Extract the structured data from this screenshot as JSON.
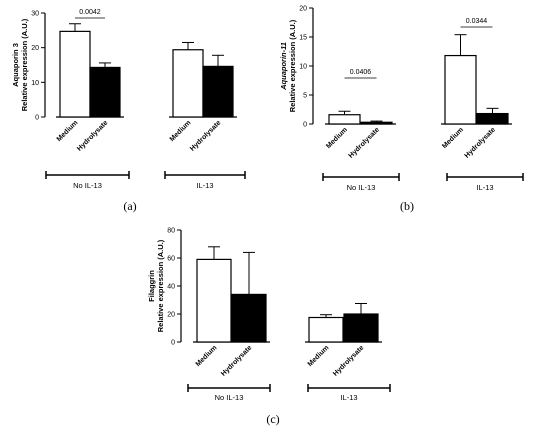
{
  "chart_data": [
    {
      "type": "bar",
      "panel_label": "(a)",
      "ylabel_line1": "Aquaporin 3",
      "ylabel_line2": "Relative expression (A.U.)",
      "ylabel_italic": false,
      "ylim": [
        0,
        30
      ],
      "yticks": [
        "0",
        "10",
        "20",
        "30"
      ],
      "groups": [
        {
          "name": "No IL-13",
          "categories": [
            "Medium",
            "Hydrolysate"
          ],
          "values": [
            24.7,
            14.3
          ],
          "errors": [
            2.2,
            1.3
          ]
        },
        {
          "name": "IL-13",
          "categories": [
            "Medium",
            "Hydrolysate"
          ],
          "values": [
            19.4,
            14.6
          ],
          "errors": [
            2.1,
            3.2
          ]
        }
      ],
      "fills": [
        "#ffffff",
        "#000000"
      ],
      "annotations": [
        {
          "group": 0,
          "text": "0.0042"
        }
      ]
    },
    {
      "type": "bar",
      "panel_label": "(b)",
      "ylabel_line1": "Aquaporin-11",
      "ylabel_line2": "Relative expression (A.U.)",
      "ylabel_italic": true,
      "ylim": [
        0,
        20
      ],
      "yticks": [
        "0",
        "5",
        "10",
        "15",
        "20"
      ],
      "groups": [
        {
          "name": "No IL-13",
          "categories": [
            "Medium",
            "Hydrolysate"
          ],
          "values": [
            1.6,
            0.3
          ],
          "errors": [
            0.6,
            0.2
          ]
        },
        {
          "name": "IL-13",
          "categories": [
            "Medium",
            "Hydrolysate"
          ],
          "values": [
            11.8,
            1.8
          ],
          "errors": [
            3.6,
            0.9
          ]
        }
      ],
      "fills": [
        "#ffffff",
        "#000000"
      ],
      "annotations": [
        {
          "group": 0,
          "text": "0.0406"
        },
        {
          "group": 1,
          "text": "0.0344"
        }
      ]
    },
    {
      "type": "bar",
      "panel_label": "(c)",
      "ylabel_line1": "Filaggrin",
      "ylabel_line2": "Relative expression (A.U.)",
      "ylabel_italic": false,
      "ylim": [
        0,
        80
      ],
      "yticks": [
        "0",
        "20",
        "40",
        "60",
        "80"
      ],
      "groups": [
        {
          "name": "No IL-13",
          "categories": [
            "Medium",
            "Hydrolysate"
          ],
          "values": [
            59,
            34
          ],
          "errors": [
            9,
            30
          ]
        },
        {
          "name": "IL-13",
          "categories": [
            "Medium",
            "Hydrolysate"
          ],
          "values": [
            17.5,
            20
          ],
          "errors": [
            2,
            7.5
          ]
        }
      ],
      "fills": [
        "#ffffff",
        "#000000"
      ],
      "annotations": []
    }
  ]
}
